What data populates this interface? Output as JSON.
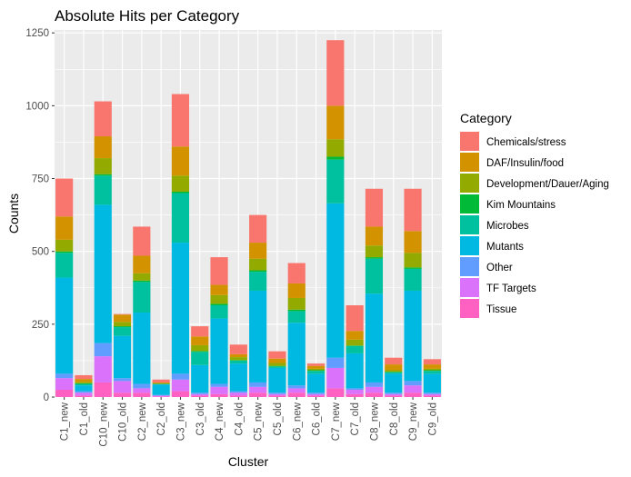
{
  "chart_data": {
    "type": "bar",
    "stacked": true,
    "title": "Absolute Hits per Category",
    "xlabel": "Cluster",
    "ylabel": "Counts",
    "ylim": [
      0,
      1260
    ],
    "yticks": [
      0,
      250,
      500,
      750,
      1000,
      1250
    ],
    "grid": true,
    "legend_position": "right",
    "legend_title": "Category",
    "categories": [
      "C1_new",
      "C1_old",
      "C10_new",
      "C10_old",
      "C2_new",
      "C2_old",
      "C3_new",
      "C3_old",
      "C4_new",
      "C4_old",
      "C5_new",
      "C5_old",
      "C6_new",
      "C6_old",
      "C7_new",
      "C7_old",
      "C8_new",
      "C8_old",
      "C9_new",
      "C9_old"
    ],
    "series": [
      {
        "name": "Tissue",
        "color": "#FF61C3",
        "values": [
          25,
          5,
          50,
          15,
          15,
          2,
          20,
          5,
          10,
          5,
          15,
          5,
          15,
          5,
          30,
          10,
          15,
          5,
          15,
          5
        ]
      },
      {
        "name": "TF Targets",
        "color": "#DB72FB",
        "values": [
          40,
          10,
          90,
          40,
          15,
          3,
          40,
          5,
          25,
          10,
          20,
          5,
          15,
          5,
          70,
          15,
          20,
          5,
          25,
          5
        ]
      },
      {
        "name": "Other",
        "color": "#619CFF",
        "values": [
          15,
          5,
          45,
          10,
          15,
          2,
          20,
          5,
          10,
          5,
          15,
          5,
          10,
          5,
          35,
          5,
          15,
          5,
          15,
          5
        ]
      },
      {
        "name": "Mutants",
        "color": "#00B9E3",
        "values": [
          330,
          20,
          475,
          145,
          245,
          36,
          450,
          95,
          225,
          95,
          315,
          85,
          215,
          65,
          530,
          120,
          305,
          65,
          310,
          65
        ]
      },
      {
        "name": "Microbes",
        "color": "#00C19F",
        "values": [
          85,
          5,
          100,
          30,
          105,
          2,
          170,
          45,
          45,
          10,
          65,
          5,
          40,
          10,
          150,
          25,
          120,
          5,
          75,
          10
        ]
      },
      {
        "name": "Kim Mountains",
        "color": "#00BA38",
        "values": [
          5,
          2,
          5,
          3,
          5,
          0,
          5,
          3,
          5,
          2,
          5,
          2,
          5,
          2,
          10,
          2,
          5,
          2,
          5,
          2
        ]
      },
      {
        "name": "Development/Dauer/Aging",
        "color": "#93AA00",
        "values": [
          40,
          5,
          55,
          15,
          25,
          2,
          55,
          20,
          30,
          10,
          40,
          10,
          40,
          5,
          60,
          20,
          40,
          5,
          50,
          5
        ]
      },
      {
        "name": "DAF/Insulin/food",
        "color": "#D39200",
        "values": [
          80,
          10,
          75,
          25,
          60,
          3,
          100,
          30,
          35,
          10,
          55,
          15,
          50,
          10,
          115,
          30,
          65,
          20,
          75,
          15
        ]
      },
      {
        "name": "Chemicals/stress",
        "color": "#F8766D",
        "values": [
          130,
          13,
          120,
          2,
          100,
          10,
          180,
          35,
          95,
          33,
          95,
          25,
          70,
          8,
          225,
          88,
          130,
          23,
          145,
          18
        ]
      }
    ]
  }
}
